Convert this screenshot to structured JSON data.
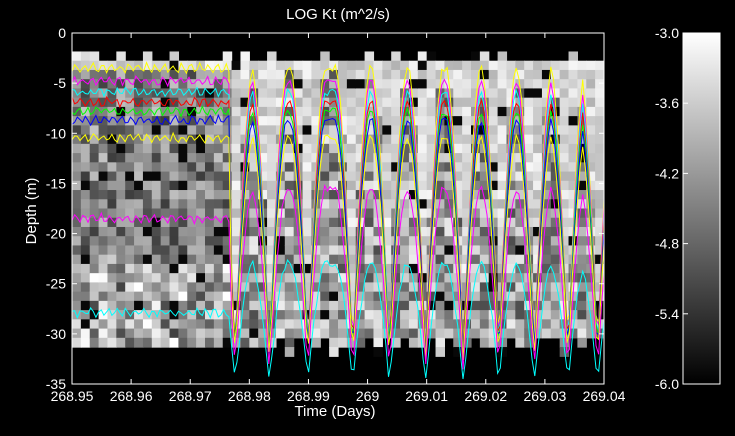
{
  "chart_data": {
    "type": "heatmap",
    "title": "LOG Kt (m^2/s)",
    "xlabel": "Time (Days)",
    "ylabel": "Depth (m)",
    "xlim": [
      268.95,
      269.04
    ],
    "ylim": [
      -35,
      0
    ],
    "x_ticks": [
      "268.95",
      "268.96",
      "268.97",
      "268.98",
      "268.99",
      "269",
      "269.01",
      "269.02",
      "269.03",
      "269.04"
    ],
    "y_ticks": [
      "0",
      "-5",
      "-10",
      "-15",
      "-20",
      "-25",
      "-30",
      "-35"
    ],
    "colorbar": {
      "range": [
        -6.0,
        -3.0
      ],
      "ticks": [
        "-3.0",
        "-3.6",
        "-4.2",
        "-4.8",
        "-5.4",
        "-6.0"
      ],
      "colormap": "gray"
    },
    "grid": false,
    "contour_colors": [
      "#ffff00",
      "#ff00ff",
      "#00ffff",
      "#ff0000",
      "#00ff00",
      "#0000ff",
      "#ffff00",
      "#ff00ff",
      "#00ffff"
    ]
  }
}
